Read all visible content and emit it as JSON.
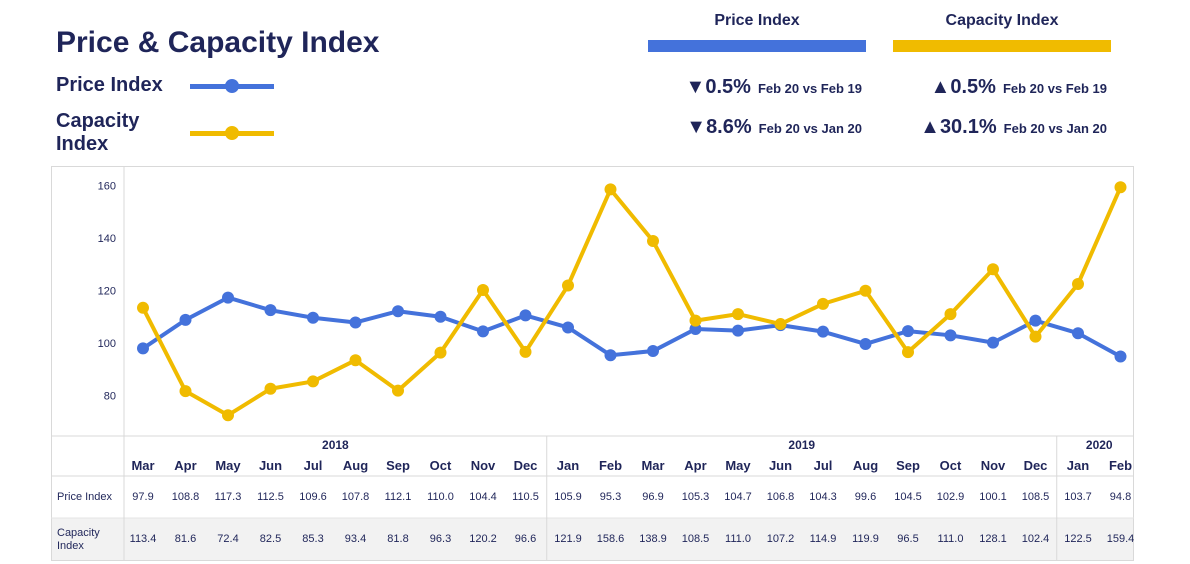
{
  "title": "Price & Capacity Index",
  "legend": [
    {
      "label": "Price Index",
      "color": "#4472db"
    },
    {
      "label": "Capacity Index",
      "color": "#f0bb00"
    }
  ],
  "kpis": [
    {
      "header": "Price Index",
      "color": "#4472db",
      "rows": [
        {
          "arrow": "▼",
          "value": "0.5%",
          "compare": "Feb 20 vs Feb 19"
        },
        {
          "arrow": "▼",
          "value": "8.6%",
          "compare": "Feb 20 vs Jan 20"
        }
      ]
    },
    {
      "header": "Capacity Index",
      "color": "#f0bb00",
      "rows": [
        {
          "arrow": "▲",
          "value": "0.5%",
          "compare": "Feb 20 vs Feb 19"
        },
        {
          "arrow": "▲",
          "value": "30.1%",
          "compare": "Feb 20 vs Jan 20"
        }
      ]
    }
  ],
  "chart_data": {
    "type": "line",
    "years": [
      {
        "label": "2018",
        "span": 10
      },
      {
        "label": "2019",
        "span": 12
      },
      {
        "label": "2020",
        "span": 2
      }
    ],
    "categories": [
      "Mar",
      "Apr",
      "May",
      "Jun",
      "Jul",
      "Aug",
      "Sep",
      "Oct",
      "Nov",
      "Dec",
      "Jan",
      "Feb",
      "Mar",
      "Apr",
      "May",
      "Jun",
      "Jul",
      "Aug",
      "Sep",
      "Oct",
      "Nov",
      "Dec",
      "Jan",
      "Feb"
    ],
    "series": [
      {
        "name": "Price Index",
        "row_label": "Price Index",
        "color": "#4472db",
        "values": [
          97.9,
          108.8,
          117.3,
          112.5,
          109.6,
          107.8,
          112.1,
          110.0,
          104.4,
          110.5,
          105.9,
          95.3,
          96.9,
          105.3,
          104.7,
          106.8,
          104.3,
          99.6,
          104.5,
          102.9,
          100.1,
          108.5,
          103.7,
          94.8
        ],
        "labels": [
          "97.9",
          "108.8",
          "117.3",
          "112.5",
          "109.6",
          "107.8",
          "112.1",
          "110.0",
          "104.4",
          "110.5",
          "105.9",
          "95.3",
          "96.9",
          "105.3",
          "104.7",
          "106.8",
          "104.3",
          "99.6",
          "104.5",
          "102.9",
          "100.1",
          "108.5",
          "103.7",
          "94.8"
        ]
      },
      {
        "name": "Capacity Index",
        "row_label": "Capacity Index",
        "color": "#f0bb00",
        "values": [
          113.4,
          81.6,
          72.4,
          82.5,
          85.3,
          93.4,
          81.8,
          96.3,
          120.2,
          96.6,
          121.9,
          158.6,
          138.9,
          108.5,
          111.0,
          107.2,
          114.9,
          119.9,
          96.5,
          111.0,
          128.1,
          102.4,
          122.5,
          159.4
        ],
        "labels": [
          "113.4",
          "81.6",
          "72.4",
          "82.5",
          "85.3",
          "93.4",
          "81.8",
          "96.3",
          "120.2",
          "96.6",
          "121.9",
          "158.6",
          "138.9",
          "108.5",
          "111.0",
          "107.2",
          "114.9",
          "119.9",
          "96.5",
          "111.0",
          "128.1",
          "102.4",
          "122.5",
          "159.4"
        ]
      }
    ],
    "yticks": [
      "80",
      "100",
      "120",
      "140",
      "160"
    ],
    "ylim": [
      66,
      166
    ],
    "grid": false
  }
}
